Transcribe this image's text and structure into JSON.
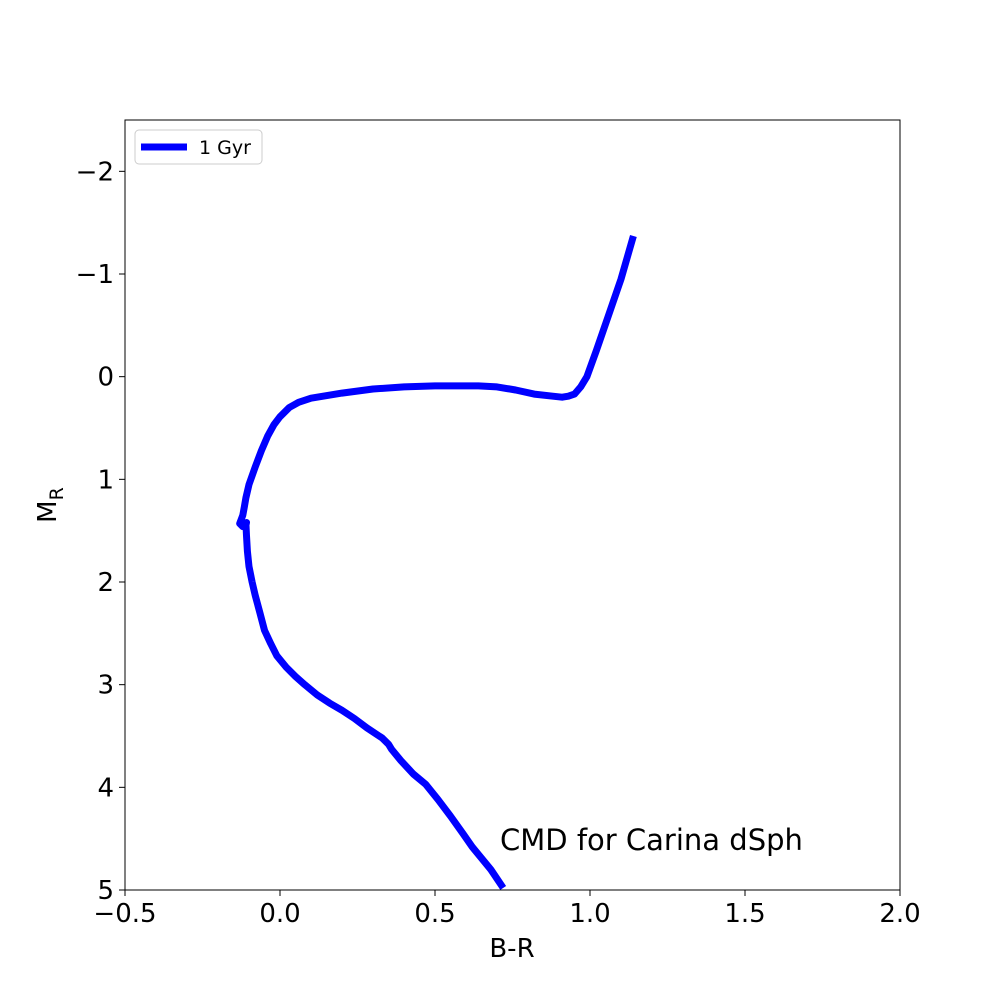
{
  "chart_data": {
    "type": "line",
    "title": "",
    "xlabel": "B-R",
    "ylabel": "M",
    "ylabel_sub": "R",
    "xlim": [
      -0.5,
      2.0
    ],
    "ylim": [
      5,
      -2.5
    ],
    "y_inverted": true,
    "grid": false,
    "legend_position": "top-left",
    "x_ticks": [
      -0.5,
      0.0,
      0.5,
      1.0,
      1.5,
      2.0
    ],
    "x_tick_labels": [
      "−0.5",
      "0.0",
      "0.5",
      "1.0",
      "1.5",
      "2.0"
    ],
    "y_ticks": [
      -2,
      -1,
      0,
      1,
      2,
      3,
      4,
      5
    ],
    "y_tick_labels": [
      "−2",
      "−1",
      "0",
      "1",
      "2",
      "3",
      "4",
      "5"
    ],
    "annotation": "CMD for Carina dSph",
    "series": [
      {
        "name": "1 Gyr",
        "color": "#0000ff",
        "x": [
          0.72,
          0.68,
          0.62,
          0.59,
          0.55,
          0.51,
          0.47,
          0.43,
          0.39,
          0.36,
          0.35,
          0.33,
          0.28,
          0.24,
          0.2,
          0.16,
          0.12,
          0.08,
          0.05,
          0.02,
          -0.01,
          -0.03,
          -0.05,
          -0.065,
          -0.08,
          -0.09,
          -0.1,
          -0.105,
          -0.108,
          -0.11,
          -0.108,
          -0.11,
          -0.12,
          -0.13,
          -0.12,
          -0.115,
          -0.11,
          -0.1,
          -0.08,
          -0.06,
          -0.04,
          -0.02,
          0.0,
          0.03,
          0.06,
          0.1,
          0.2,
          0.3,
          0.4,
          0.5,
          0.58,
          0.64,
          0.7,
          0.76,
          0.82,
          0.88,
          0.91,
          0.93,
          0.95,
          0.97,
          0.99,
          1.02,
          1.06,
          1.1,
          1.14
        ],
        "y": [
          4.98,
          4.8,
          4.58,
          4.45,
          4.28,
          4.12,
          3.97,
          3.87,
          3.74,
          3.63,
          3.58,
          3.52,
          3.42,
          3.33,
          3.25,
          3.18,
          3.1,
          3.0,
          2.92,
          2.83,
          2.72,
          2.6,
          2.47,
          2.3,
          2.13,
          2.0,
          1.85,
          1.7,
          1.55,
          1.43,
          1.42,
          1.45,
          1.46,
          1.43,
          1.35,
          1.27,
          1.18,
          1.05,
          0.88,
          0.72,
          0.58,
          0.47,
          0.39,
          0.3,
          0.25,
          0.21,
          0.16,
          0.12,
          0.1,
          0.09,
          0.09,
          0.09,
          0.1,
          0.13,
          0.17,
          0.19,
          0.2,
          0.19,
          0.17,
          0.1,
          0.0,
          -0.25,
          -0.6,
          -0.95,
          -1.37
        ]
      }
    ]
  }
}
